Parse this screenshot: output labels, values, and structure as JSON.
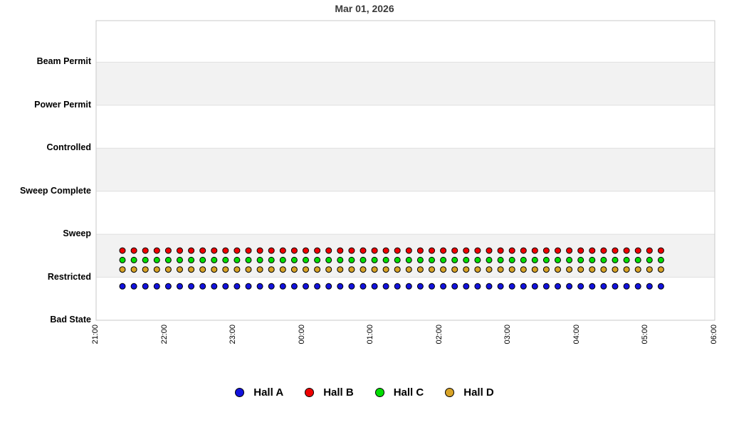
{
  "chart_data": {
    "type": "scatter",
    "title": "Mar 01, 2026",
    "x_axis": {
      "ticks": [
        "21:00",
        "22:00",
        "23:00",
        "00:00",
        "01:00",
        "02:00",
        "03:00",
        "04:00",
        "05:00",
        "06:00"
      ],
      "start_hour": 21,
      "span_hours": 9
    },
    "y_axis": {
      "categories": [
        "Bad State",
        "Restricted",
        "Sweep",
        "Sweep Complete",
        "Controlled",
        "Power Permit",
        "Beam Permit"
      ]
    },
    "samples": {
      "start_time": "21:23",
      "interval_minutes": 10,
      "count": 48
    },
    "series": [
      {
        "name": "Hall A",
        "color": "#1212dd",
        "level_value": 0.79
      },
      {
        "name": "Hall B",
        "color": "#ee0000",
        "level_value": 1.62
      },
      {
        "name": "Hall C",
        "color": "#00dd00",
        "level_value": 1.4
      },
      {
        "name": "Hall D",
        "color": "#d8a327",
        "level_value": 1.18
      }
    ],
    "legend_position": "bottom",
    "grid": {
      "horizontal_bands": true,
      "band_color": "#f2f2f2",
      "gridline_color": "#e0e0e0",
      "border_color": "#c9c9c9"
    }
  }
}
